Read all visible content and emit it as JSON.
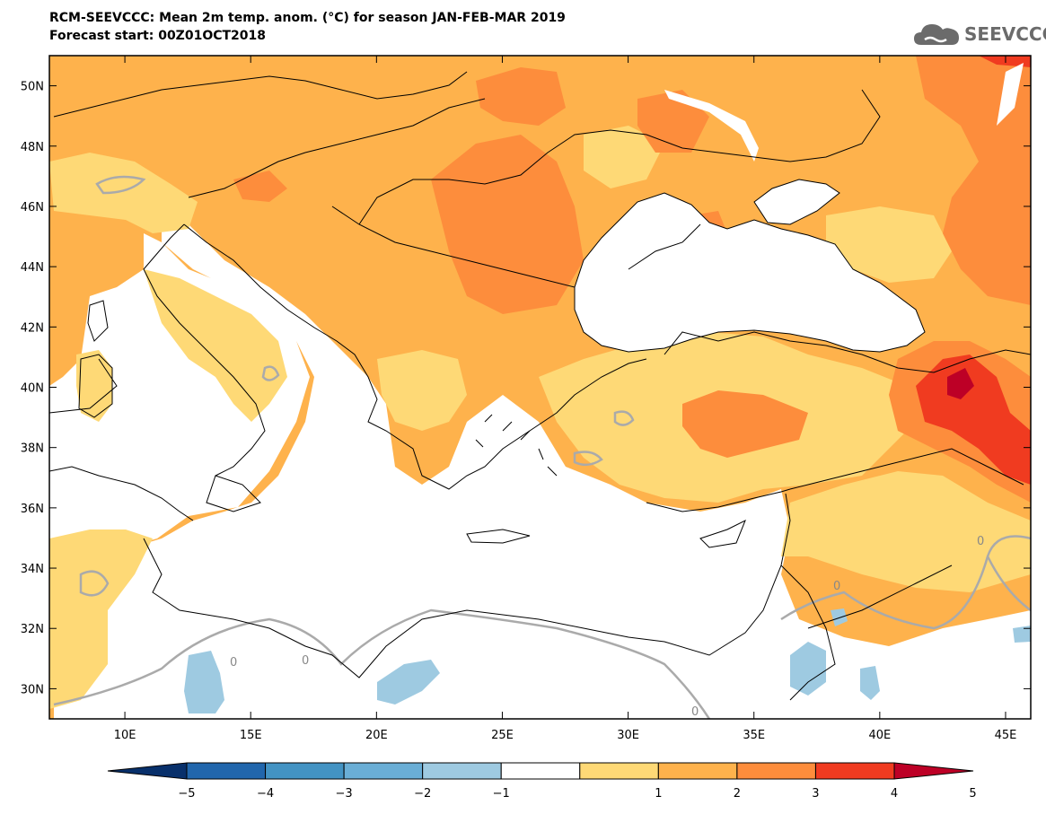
{
  "title": {
    "line1": "RCM-SEEVCCC: Mean 2m temp. anom. (°C) for season JAN-FEB-MAR 2019",
    "line2": "Forecast start: 00Z01OCT2018"
  },
  "logo": {
    "text": "SEEVCCC",
    "icon": "cloud-icon"
  },
  "map": {
    "lon_range": [
      7,
      46
    ],
    "lat_range": [
      29,
      51
    ],
    "lon_ticks": [
      "10E",
      "15E",
      "20E",
      "25E",
      "30E",
      "35E",
      "40E",
      "45E"
    ],
    "lat_ticks": [
      "50N",
      "48N",
      "46N",
      "44N",
      "42N",
      "40N",
      "38N",
      "36N",
      "34N",
      "32N",
      "30N"
    ],
    "contour_labels": [
      "0",
      "0",
      "0",
      "0",
      "0"
    ]
  },
  "colorbar": {
    "labels": [
      "−5",
      "−4",
      "−3",
      "−2",
      "−1",
      "1",
      "2",
      "3",
      "4",
      "5"
    ],
    "colors": [
      "#08306b",
      "#2166ac",
      "#4393c3",
      "#6aaed6",
      "#9ecae1",
      "#ffffff",
      "#fed976",
      "#feb24c",
      "#fd8d3c",
      "#f03b20",
      "#bd0026"
    ]
  }
}
